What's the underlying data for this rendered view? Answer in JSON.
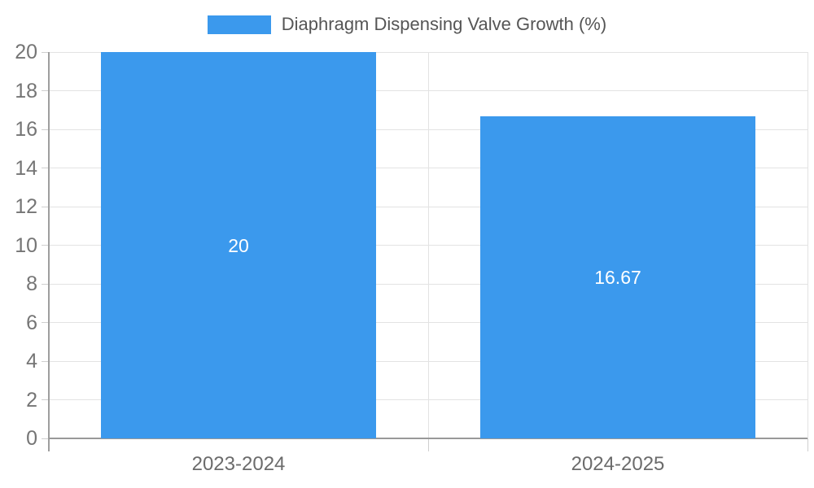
{
  "legend": {
    "label": "Diaphragm Dispensing Valve Growth (%)"
  },
  "chart_data": {
    "type": "bar",
    "title": "",
    "xlabel": "",
    "ylabel": "",
    "categories": [
      "2023-2024",
      "2024-2025"
    ],
    "values": [
      20,
      16.67
    ],
    "data_labels": [
      "20",
      "16.67"
    ],
    "series_name": "Diaphragm Dispensing Valve Growth (%)",
    "ylim": [
      0,
      20
    ],
    "yticks": [
      0,
      2,
      4,
      6,
      8,
      10,
      12,
      14,
      16,
      18,
      20
    ],
    "grid": true,
    "legend_position": "top-center",
    "colors": {
      "bar": "#3B99ED",
      "bar_label": "#FFFFFF",
      "grid_line": "#E3E3E3",
      "axis_line": "#9E9E9E",
      "zero_line": "#999999",
      "tick": "#CFCFCF",
      "y_label": "#757575",
      "x_label": "#6B6B6B",
      "legend_text": "#555555",
      "background": "#FFFFFF"
    }
  }
}
